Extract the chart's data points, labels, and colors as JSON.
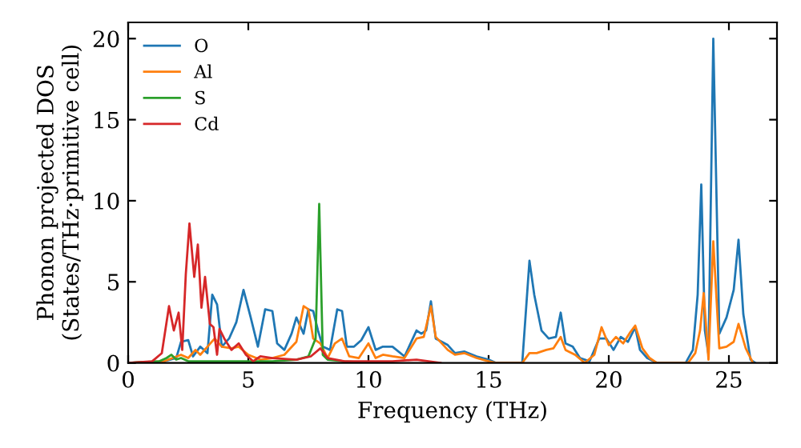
{
  "chart_data": {
    "type": "line",
    "xlabel": "Frequency (THz)",
    "ylabel": "Phonon projected DOS\n(States/THz·primitive cell)",
    "xlim": [
      0,
      27
    ],
    "ylim": [
      0,
      21
    ],
    "xticks": [
      0,
      5,
      10,
      15,
      20,
      25
    ],
    "yticks": [
      0,
      5,
      10,
      15,
      20
    ],
    "grid": false,
    "legend": "top left",
    "series": [
      {
        "name": "O",
        "color": "#1f77b4",
        "x": [
          0,
          1.5,
          2.0,
          2.2,
          2.5,
          2.7,
          3.0,
          3.3,
          3.5,
          3.7,
          3.9,
          4.2,
          4.5,
          4.8,
          5.1,
          5.4,
          5.7,
          6.0,
          6.2,
          6.5,
          6.8,
          7.0,
          7.3,
          7.5,
          7.7,
          7.9,
          8.1,
          8.4,
          8.7,
          8.9,
          9.1,
          9.4,
          9.7,
          10.0,
          10.3,
          10.6,
          11.0,
          11.5,
          12.0,
          12.2,
          12.4,
          12.6,
          12.8,
          13.3,
          13.6,
          14.0,
          14.5,
          15.0,
          15.3,
          16.4,
          16.7,
          16.9,
          17.2,
          17.5,
          17.8,
          18.0,
          18.2,
          18.5,
          18.8,
          19.2,
          19.6,
          19.9,
          20.2,
          20.5,
          20.8,
          21.1,
          21.3,
          21.6,
          22.0,
          23.2,
          23.5,
          23.7,
          23.85,
          24.0,
          24.15,
          24.35,
          24.6,
          24.9,
          25.2,
          25.4,
          25.6,
          25.9,
          26.1
        ],
        "values": [
          0,
          0.1,
          0.3,
          1.3,
          1.4,
          0.4,
          1.0,
          0.6,
          4.2,
          3.6,
          1.0,
          1.5,
          2.5,
          4.5,
          2.8,
          1.0,
          3.3,
          3.2,
          1.2,
          0.8,
          1.8,
          2.8,
          1.8,
          3.3,
          3.2,
          2.0,
          1.0,
          0.8,
          3.3,
          3.2,
          1.0,
          1.0,
          1.4,
          2.2,
          0.8,
          1.0,
          1.0,
          0.4,
          2.0,
          1.8,
          2.0,
          3.8,
          1.5,
          1.1,
          0.6,
          0.7,
          0.4,
          0.2,
          0,
          0,
          6.3,
          4.2,
          2.0,
          1.5,
          1.6,
          3.1,
          1.2,
          1.0,
          0.3,
          0.1,
          1.5,
          1.5,
          0.8,
          1.6,
          1.3,
          2.2,
          0.8,
          0.3,
          0,
          0,
          0.8,
          4.2,
          11.0,
          2.0,
          0.5,
          20.0,
          1.8,
          2.8,
          4.5,
          7.6,
          3.0,
          0.2,
          0
        ]
      },
      {
        "name": "Al",
        "color": "#ff7f0e",
        "x": [
          0,
          1.5,
          2.2,
          2.5,
          2.8,
          3.0,
          3.3,
          3.6,
          3.9,
          4.3,
          4.6,
          5.0,
          5.5,
          6.0,
          6.5,
          7.0,
          7.3,
          7.5,
          7.7,
          8.0,
          8.3,
          8.6,
          8.9,
          9.2,
          9.6,
          10.0,
          10.3,
          10.6,
          11.0,
          11.5,
          12.0,
          12.3,
          12.6,
          12.8,
          13.3,
          13.6,
          14.0,
          14.5,
          15.0,
          15.3,
          16.4,
          16.7,
          17.0,
          17.4,
          17.7,
          18.0,
          18.2,
          18.6,
          19.0,
          19.4,
          19.7,
          20.0,
          20.3,
          20.6,
          20.9,
          21.1,
          21.4,
          21.7,
          22.0,
          23.3,
          23.6,
          23.8,
          23.95,
          24.15,
          24.35,
          24.6,
          24.9,
          25.2,
          25.4,
          25.7,
          26.0
        ],
        "values": [
          0,
          0.1,
          0.5,
          0.3,
          0.8,
          0.5,
          1.0,
          1.5,
          1.0,
          0.9,
          1.0,
          0.5,
          0.2,
          0.3,
          0.5,
          1.3,
          3.5,
          3.3,
          1.5,
          1.2,
          0.3,
          1.2,
          1.5,
          0.4,
          0.3,
          1.2,
          0.3,
          0.5,
          0.4,
          0.3,
          1.5,
          1.6,
          3.5,
          1.6,
          0.8,
          0.5,
          0.6,
          0.3,
          0.1,
          0,
          0,
          0.6,
          0.6,
          0.8,
          0.9,
          1.6,
          0.8,
          0.5,
          0,
          0.5,
          2.2,
          1.1,
          1.6,
          1.2,
          1.9,
          2.3,
          0.9,
          0.3,
          0,
          0,
          0.6,
          2.0,
          4.3,
          0.2,
          7.5,
          0.9,
          1.0,
          1.3,
          2.4,
          0.9,
          0
        ]
      },
      {
        "name": "S",
        "color": "#2ca02c",
        "x": [
          0,
          1.3,
          1.6,
          1.8,
          2.0,
          2.2,
          2.5,
          3.0,
          4.0,
          5.0,
          6.0,
          7.0,
          7.5,
          7.8,
          7.95,
          8.1,
          8.3,
          9.0,
          10.0
        ],
        "values": [
          0,
          0.1,
          0.3,
          0.5,
          0.2,
          0.3,
          0.1,
          0.1,
          0.1,
          0.1,
          0.1,
          0.2,
          0.4,
          1.5,
          9.8,
          0.5,
          0.2,
          0.1,
          0
        ]
      },
      {
        "name": "Cd",
        "color": "#d62728",
        "x": [
          0,
          1.0,
          1.4,
          1.7,
          1.9,
          2.1,
          2.25,
          2.4,
          2.55,
          2.75,
          2.9,
          3.05,
          3.2,
          3.4,
          3.55,
          3.7,
          3.8,
          4.0,
          4.3,
          4.6,
          4.9,
          5.2,
          5.5,
          6.0,
          7.0,
          7.6,
          8.0,
          8.3,
          9.0,
          10.0,
          11.0,
          12.0,
          12.5,
          13.0
        ],
        "values": [
          0,
          0.1,
          0.6,
          3.5,
          2.0,
          3.1,
          0.8,
          5.5,
          8.6,
          5.3,
          7.3,
          3.4,
          5.3,
          2.4,
          2.2,
          0.5,
          2.1,
          1.5,
          0.8,
          1.2,
          0.5,
          0.1,
          0.4,
          0.3,
          0.2,
          0.4,
          0.9,
          0.3,
          0.1,
          0.1,
          0.1,
          0.2,
          0.1,
          0
        ]
      }
    ]
  }
}
